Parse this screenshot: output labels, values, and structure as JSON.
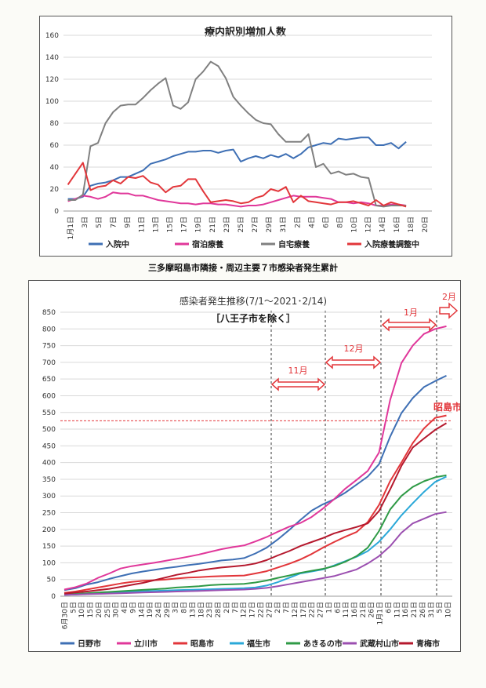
{
  "caption": "三多摩昭島市隣接・周辺主要７市感染者発生累計",
  "charts": [
    {
      "type": "line",
      "title": "療内訳別増加人数",
      "x_ticks": [
        "1月1日",
        "3日",
        "5日",
        "7日",
        "9日",
        "11日",
        "13日",
        "15日",
        "17日",
        "19日",
        "21日",
        "23日",
        "25日",
        "27日",
        "29日",
        "31日",
        "2日",
        "4日",
        "6日",
        "8日",
        "10日",
        "12日",
        "14日",
        "16日",
        "18日",
        "20日"
      ],
      "ylim": [
        0,
        160
      ],
      "yticks": [
        0,
        20,
        40,
        60,
        80,
        100,
        120,
        140,
        160
      ],
      "grid": true,
      "legend": "bottom",
      "series": [
        {
          "name": "入院中",
          "color": "#3e6fb4",
          "values": [
            11,
            11,
            13,
            23,
            25,
            26,
            28,
            31,
            31,
            34,
            37,
            43,
            45,
            47,
            50,
            52,
            54,
            54,
            55,
            55,
            53,
            55,
            56,
            45,
            48,
            50,
            48,
            51,
            49,
            52,
            48,
            52,
            58,
            60,
            62,
            61,
            66,
            65,
            66,
            67,
            67,
            60,
            60,
            62,
            57,
            63
          ]
        },
        {
          "name": "宿泊療養",
          "color": "#e0379a",
          "values": [
            9,
            11,
            14,
            13,
            11,
            13,
            17,
            16,
            16,
            14,
            14,
            12,
            10,
            9,
            8,
            7,
            7,
            6,
            7,
            7,
            6,
            6,
            5,
            4,
            5,
            5,
            6,
            8,
            10,
            12,
            14,
            13,
            13,
            13,
            12,
            11,
            8,
            8,
            7,
            8,
            7,
            5,
            5,
            6,
            6,
            5
          ]
        },
        {
          "name": "自宅療養",
          "color": "#808080",
          "values": [
            10,
            10,
            15,
            59,
            62,
            80,
            90,
            96,
            97,
            97,
            103,
            110,
            116,
            121,
            96,
            93,
            99,
            120,
            127,
            136,
            132,
            121,
            104,
            96,
            89,
            83,
            80,
            79,
            70,
            63,
            63,
            63,
            70,
            40,
            43,
            34,
            36,
            33,
            34,
            31,
            30,
            5,
            4,
            5,
            5,
            5
          ]
        },
        {
          "name": "入院療養調整中",
          "color": "#e2363a",
          "values": [
            24,
            34,
            44,
            19,
            22,
            23,
            28,
            25,
            31,
            30,
            32,
            26,
            24,
            17,
            22,
            23,
            29,
            29,
            18,
            8,
            9,
            10,
            9,
            7,
            8,
            12,
            14,
            20,
            18,
            22,
            8,
            14,
            9,
            8,
            7,
            6,
            8,
            8,
            9,
            7,
            5,
            10,
            5,
            8,
            6,
            4
          ]
        }
      ]
    },
    {
      "type": "line",
      "title": "感染者発生推移(7/1～2021･2/14)",
      "subtitle": "［八王子市を除く］",
      "x_ticks": [
        "6月30日",
        "5日",
        "10日",
        "15日",
        "20日",
        "25日",
        "30日",
        "4日",
        "9日",
        "14日",
        "19日",
        "24日",
        "29日",
        "3日",
        "8日",
        "13日",
        "18日",
        "23日",
        "28日",
        "2日",
        "7日",
        "12日",
        "17日",
        "22日",
        "27日",
        "2日",
        "7日",
        "12日",
        "17日",
        "22日",
        "27日",
        "1日",
        "6日",
        "11日",
        "16日",
        "21日",
        "26日",
        "1月1日",
        "6日",
        "11日",
        "16日",
        "21日",
        "26日",
        "31日",
        "5日",
        "10日"
      ],
      "ylim": [
        0,
        850
      ],
      "yticks": [
        0,
        50,
        100,
        150,
        200,
        250,
        300,
        350,
        400,
        450,
        500,
        550,
        600,
        650,
        700,
        750,
        800,
        850
      ],
      "grid": true,
      "legend": "bottom",
      "reference_line": 525,
      "annotations": {
        "nov": "11月",
        "dec": "12月",
        "jan": "1月",
        "feb": "2月",
        "akishima": "昭島市"
      },
      "series": [
        {
          "name": "日野市",
          "color": "#3e6fb4",
          "values": [
            18,
            24,
            35,
            42,
            52,
            60,
            68,
            74,
            79,
            84,
            88,
            93,
            97,
            102,
            107,
            110,
            114,
            128,
            145,
            170,
            198,
            228,
            256,
            275,
            290,
            310,
            334,
            358,
            395,
            478,
            548,
            593,
            626,
            644,
            660
          ]
        },
        {
          "name": "立川市",
          "color": "#e0379a",
          "values": [
            20,
            27,
            38,
            55,
            68,
            83,
            90,
            95,
            100,
            106,
            112,
            118,
            125,
            133,
            141,
            147,
            152,
            164,
            177,
            193,
            208,
            219,
            237,
            262,
            290,
            322,
            348,
            375,
            430,
            588,
            698,
            750,
            785,
            800,
            808
          ]
        },
        {
          "name": "昭島市",
          "color": "#e2363a",
          "values": [
            10,
            14,
            20,
            26,
            32,
            38,
            43,
            46,
            48,
            50,
            53,
            56,
            57,
            59,
            60,
            61,
            62,
            68,
            75,
            86,
            97,
            110,
            126,
            145,
            162,
            178,
            192,
            222,
            273,
            345,
            400,
            458,
            502,
            534,
            541
          ]
        },
        {
          "name": "福生市",
          "color": "#2aa8d8",
          "values": [
            4,
            5,
            7,
            9,
            11,
            12,
            14,
            15,
            16,
            17,
            18,
            19,
            20,
            21,
            22,
            23,
            24,
            26,
            32,
            42,
            55,
            68,
            74,
            80,
            92,
            105,
            118,
            135,
            163,
            200,
            242,
            278,
            312,
            342,
            358
          ]
        },
        {
          "name": "あきるの市",
          "color": "#2f9a46",
          "values": [
            5,
            7,
            9,
            11,
            13,
            15,
            17,
            19,
            21,
            23,
            26,
            28,
            30,
            33,
            35,
            36,
            37,
            41,
            47,
            55,
            62,
            70,
            76,
            82,
            90,
            103,
            120,
            145,
            195,
            260,
            300,
            327,
            344,
            356,
            362
          ]
        },
        {
          "name": "武蔵村山市",
          "color": "#9b4fb0",
          "values": [
            4,
            5,
            6,
            7,
            8,
            9,
            10,
            11,
            12,
            13,
            14,
            15,
            16,
            17,
            18,
            19,
            20,
            22,
            25,
            30,
            36,
            42,
            48,
            54,
            60,
            70,
            80,
            98,
            120,
            150,
            190,
            218,
            232,
            246,
            252
          ]
        },
        {
          "name": "青梅市",
          "color": "#b5182d",
          "values": [
            8,
            11,
            14,
            18,
            22,
            28,
            34,
            40,
            48,
            56,
            64,
            70,
            77,
            82,
            86,
            89,
            92,
            98,
            108,
            122,
            135,
            150,
            162,
            174,
            188,
            198,
            207,
            218,
            255,
            320,
            390,
            445,
            472,
            498,
            518
          ]
        }
      ]
    }
  ]
}
